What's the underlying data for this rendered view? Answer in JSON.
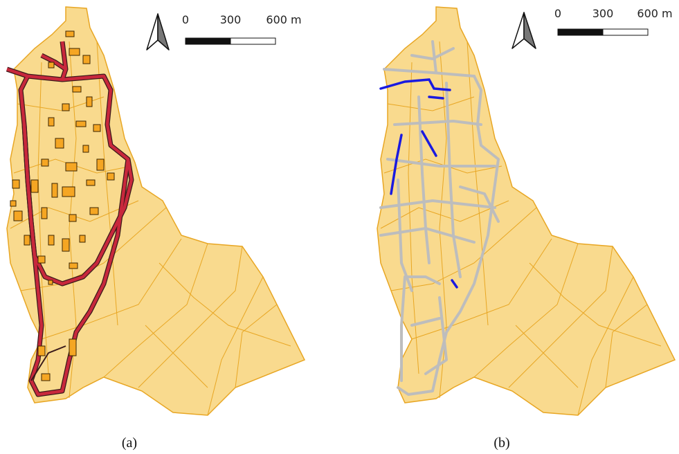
{
  "panels": [
    {
      "label": "(a)",
      "scale": {
        "start": "0",
        "middle": "300",
        "end": "600 m"
      }
    },
    {
      "label": "(b)",
      "scale": {
        "start": "0",
        "middle": "300",
        "end": "600 m"
      }
    }
  ]
}
